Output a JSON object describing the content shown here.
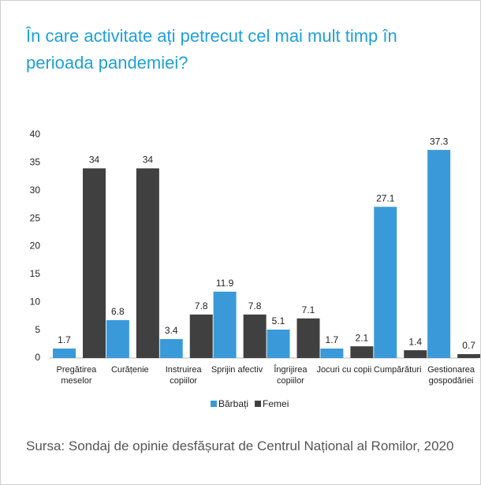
{
  "chart_data": {
    "type": "bar",
    "title": "În care activitate ați petrecut cel mai mult timp în perioada pandemiei?",
    "source": "Sursa: Sondaj de opinie desfășurat de Centrul Național al Romilor, 2020",
    "categories": [
      "Pregătirea meselor",
      "Curățenie",
      "Instruirea copiilor",
      "Sprijin afectiv",
      "Îngrijirea copiilor",
      "Jocuri cu copii",
      "Cumpărături",
      "Gestionarea gospodăriei"
    ],
    "series": [
      {
        "name": "Bărbați",
        "color": "#3a9ad9",
        "values": [
          1.7,
          6.8,
          3.4,
          11.9,
          5.1,
          1.7,
          27.1,
          37.3
        ]
      },
      {
        "name": "Femei",
        "color": "#404040",
        "values": [
          34,
          34,
          7.8,
          7.8,
          7.1,
          2.1,
          1.4,
          0.7
        ]
      }
    ],
    "ylim": [
      0,
      40
    ],
    "yticks": [
      0,
      5,
      10,
      15,
      20,
      25,
      30,
      35,
      40
    ],
    "grid": false,
    "legend": "bottom"
  }
}
